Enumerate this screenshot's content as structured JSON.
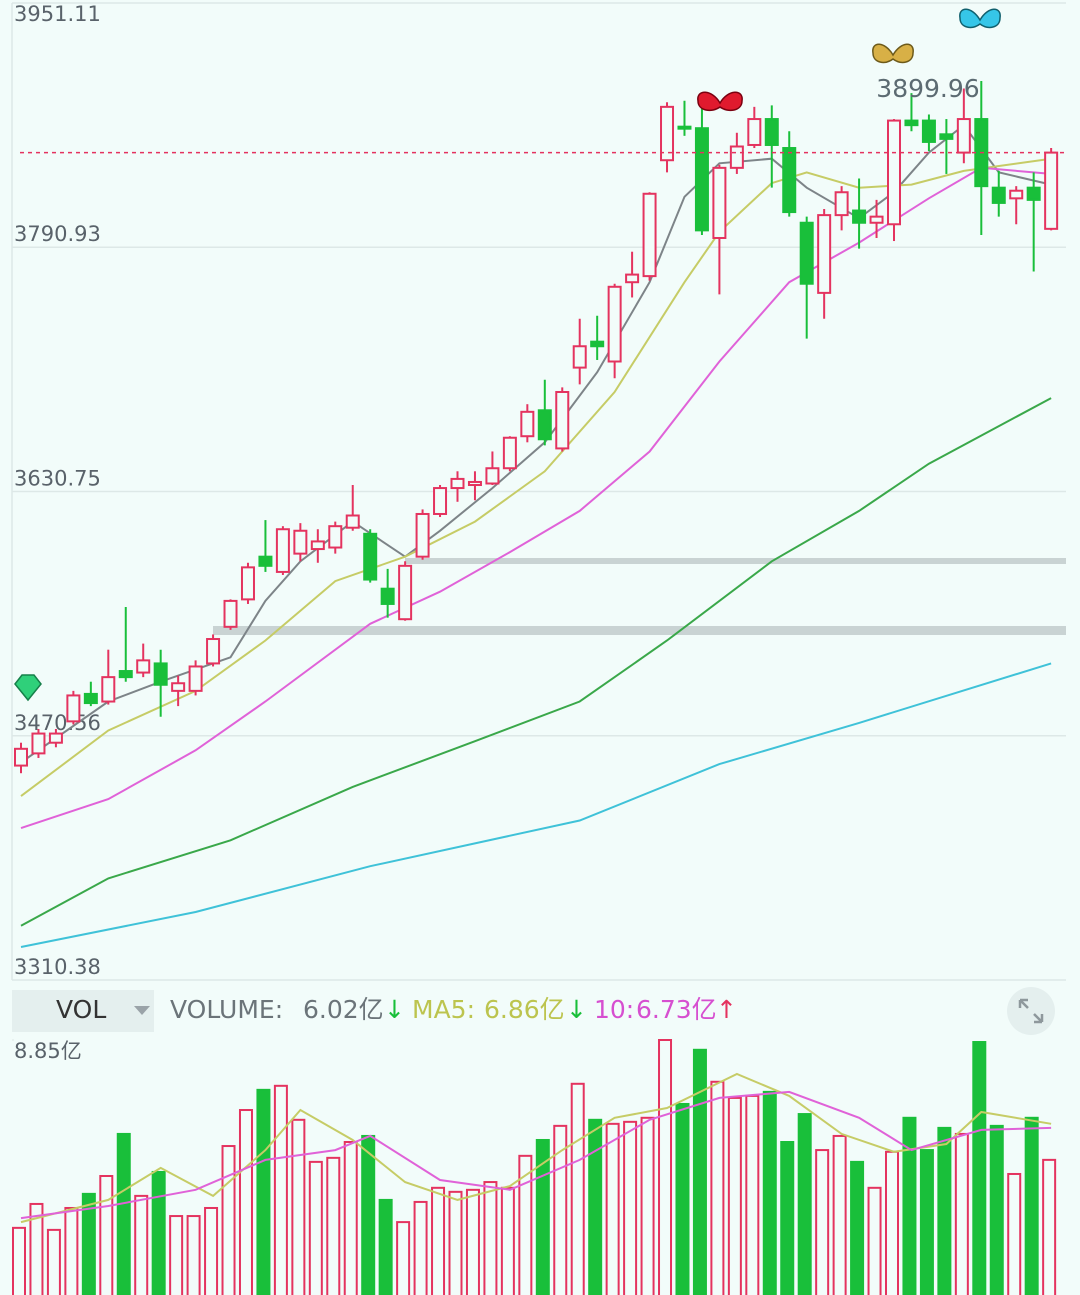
{
  "chart_data": [
    {
      "type": "candlestick",
      "ylim": [
        3310.38,
        3951.11
      ],
      "yticks": [
        3310.38,
        3470.56,
        3630.75,
        3790.93,
        3951.11
      ],
      "grid": true,
      "up_color": "#e4335f",
      "down_color": "#19bf3a",
      "open": [
        3451,
        3459,
        3466,
        3480,
        3498,
        3493,
        3513,
        3512,
        3518,
        3500,
        3500,
        3518,
        3542,
        3560,
        3588,
        3578,
        3590,
        3593,
        3594,
        3607,
        3603,
        3567,
        3547,
        3588,
        3616,
        3633,
        3635,
        3636,
        3646,
        3667,
        3684,
        3659,
        3712,
        3729,
        3716,
        3768,
        3772,
        3848,
        3870,
        3869,
        3797,
        3843,
        3858,
        3875,
        3856,
        3807,
        3761,
        3812,
        3815,
        3807,
        3806,
        3874,
        3874,
        3865,
        3853,
        3875,
        3830,
        3823,
        3830,
        3803
      ],
      "high": [
        3466,
        3475,
        3475,
        3500,
        3506,
        3527,
        3555,
        3531,
        3527,
        3510,
        3520,
        3537,
        3560,
        3584,
        3612,
        3608,
        3610,
        3606,
        3611,
        3635,
        3606,
        3580,
        3585,
        3619,
        3635,
        3644,
        3644,
        3657,
        3667,
        3688,
        3704,
        3699,
        3744,
        3746,
        3767,
        3788,
        3827,
        3886,
        3887,
        3890,
        3845,
        3866,
        3883,
        3884,
        3867,
        3811,
        3816,
        3831,
        3836,
        3822,
        3875,
        3892,
        3878,
        3875,
        3895,
        3899.96,
        3841,
        3831,
        3840,
        3856
      ],
      "low": [
        3446,
        3456,
        3463,
        3478,
        3490,
        3491,
        3506,
        3509,
        3483,
        3490,
        3497,
        3516,
        3540,
        3557,
        3578,
        3576,
        3585,
        3584,
        3590,
        3605,
        3571,
        3548,
        3546,
        3586,
        3614,
        3624,
        3625,
        3635,
        3644,
        3663,
        3661,
        3657,
        3701,
        3717,
        3705,
        3758,
        3769,
        3840,
        3864,
        3799,
        3760,
        3839,
        3856,
        3830,
        3811,
        3731,
        3744,
        3802,
        3790,
        3797,
        3795,
        3867,
        3854,
        3839,
        3846,
        3799,
        3811,
        3806,
        3775,
        3802
      ],
      "close": [
        3462,
        3472,
        3472,
        3497,
        3492,
        3509,
        3509,
        3520,
        3504,
        3505,
        3516,
        3534,
        3559,
        3581,
        3582,
        3606,
        3605,
        3598,
        3608,
        3615,
        3573,
        3557,
        3582,
        3616,
        3633,
        3639,
        3637,
        3646,
        3666,
        3683,
        3665,
        3696,
        3726,
        3726,
        3765,
        3773,
        3826,
        3883,
        3869,
        3802,
        3843,
        3857,
        3875,
        3858,
        3814,
        3767,
        3812,
        3827,
        3807,
        3811,
        3874,
        3871,
        3860,
        3862,
        3875,
        3831,
        3820,
        3828,
        3822,
        3853
      ],
      "annotation": "3899.96",
      "lines": [
        {
          "color": "#7d8488",
          "x": [
            0,
            5,
            8,
            12,
            14,
            16,
            19,
            22,
            24,
            27,
            30,
            33,
            36,
            38,
            40,
            43,
            45,
            48,
            50,
            52,
            54,
            56,
            59
          ],
          "values": [
            3453,
            3493,
            3506,
            3522,
            3559,
            3585,
            3611,
            3588,
            3605,
            3633,
            3663,
            3709,
            3768,
            3824,
            3846,
            3849,
            3830,
            3810,
            3827,
            3853,
            3871,
            3840,
            3832
          ]
        },
        {
          "color": "#c6cc66",
          "x": [
            0,
            5,
            10,
            14,
            18,
            22,
            26,
            30,
            34,
            38,
            40,
            43,
            45,
            48,
            51,
            54,
            59
          ],
          "values": [
            3431,
            3474,
            3500,
            3533,
            3572,
            3588,
            3611,
            3644,
            3696,
            3768,
            3801,
            3833,
            3840,
            3830,
            3832,
            3841,
            3849
          ]
        },
        {
          "color": "#e062d8",
          "x": [
            0,
            5,
            10,
            14,
            20,
            24,
            28,
            32,
            36,
            40,
            44,
            48,
            52,
            55,
            59
          ],
          "values": [
            3410,
            3429,
            3461,
            3493,
            3544,
            3565,
            3591,
            3618,
            3657,
            3716,
            3768,
            3794,
            3823,
            3843,
            3839
          ]
        },
        {
          "color": "#3aa84a",
          "x": [
            0,
            5,
            12,
            19,
            26,
            32,
            37,
            43,
            48,
            52,
            59
          ],
          "values": [
            3346,
            3377,
            3402,
            3437,
            3467,
            3493,
            3533,
            3585,
            3618,
            3649,
            3692
          ]
        },
        {
          "color": "#3fc2d8",
          "x": [
            0,
            10,
            20,
            32,
            40,
            48,
            59
          ],
          "values": [
            3332,
            3355,
            3385,
            3415,
            3452,
            3479,
            3518
          ]
        }
      ]
    },
    {
      "type": "volume",
      "ylim": [
        0,
        8.85
      ],
      "yticks": [
        {
          "value": 8.85,
          "label": "8.85亿"
        }
      ],
      "values": [
        2.33,
        3.16,
        2.26,
        3.02,
        3.51,
        4.13,
        5.59,
        3.44,
        4.27,
        2.74,
        2.74,
        3.02,
        5.17,
        6.42,
        7.12,
        7.26,
        6.08,
        4.62,
        4.76,
        5.31,
        5.52,
        3.3,
        2.53,
        3.23,
        3.72,
        3.58,
        3.65,
        3.92,
        3.72,
        4.83,
        5.38,
        5.87,
        7.33,
        6.08,
        5.94,
        6.01,
        6.15,
        8.85,
        6.63,
        8.51,
        7.4,
        6.84,
        6.91,
        7.05,
        5.31,
        6.28,
        5.03,
        5.52,
        4.62,
        3.72,
        4.97,
        6.15,
        5.03,
        5.8,
        5.59,
        8.78,
        5.87,
        4.2,
        6.15,
        4.69
      ],
      "header": {
        "indicator": "VOL",
        "volume_label": "VOLUME:",
        "volume_value": "6.02亿",
        "volume_arrow": "↓",
        "ma5_label": "MA5:",
        "ma5_value": "6.86亿",
        "ma5_arrow": "↓",
        "ma10_label": "10:",
        "ma10_value": "6.73亿",
        "ma10_arrow": "↑"
      },
      "lines": [
        {
          "color": "#c6cc66",
          "x": [
            0,
            5,
            8,
            11,
            14,
            16,
            19,
            22,
            25,
            28,
            31,
            34,
            37,
            41,
            44,
            47,
            50,
            53,
            55,
            59
          ],
          "values": [
            2.53,
            3.3,
            4.41,
            3.44,
            5.03,
            6.42,
            5.38,
            3.92,
            3.3,
            3.78,
            5.03,
            6.15,
            6.49,
            7.67,
            6.91,
            5.59,
            4.97,
            5.24,
            6.35,
            5.94
          ]
        },
        {
          "color": "#e062d8",
          "x": [
            0,
            5,
            10,
            14,
            18,
            20,
            24,
            28,
            32,
            36,
            40,
            44,
            48,
            51,
            55,
            59
          ],
          "values": [
            2.67,
            3.09,
            3.65,
            4.69,
            5.03,
            5.52,
            3.99,
            3.65,
            4.69,
            6.08,
            6.84,
            7.05,
            6.15,
            5.03,
            5.73,
            5.8
          ]
        }
      ]
    }
  ]
}
